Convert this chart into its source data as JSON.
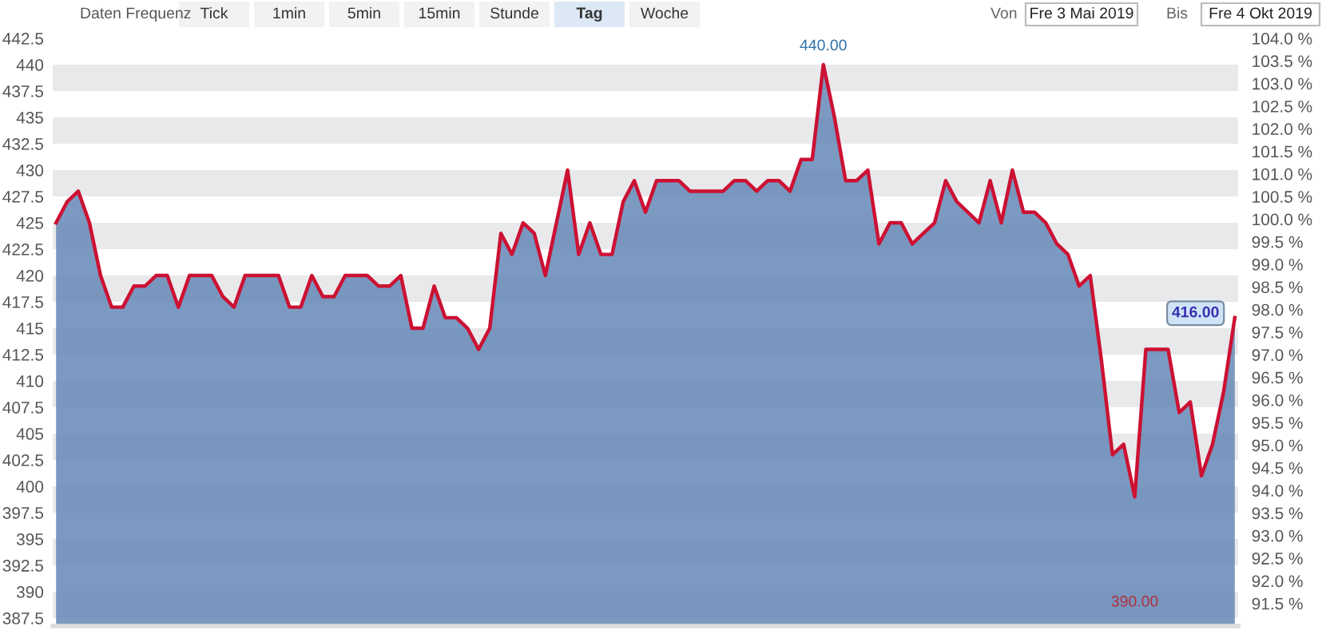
{
  "chart_data": {
    "type": "area",
    "categories": [
      null,
      null,
      null,
      null,
      null,
      null,
      null,
      null,
      null,
      null,
      null,
      null,
      null,
      null,
      null,
      null,
      null,
      null,
      null,
      null,
      null,
      null,
      null,
      null,
      null,
      null,
      null,
      null,
      null,
      null,
      null,
      null,
      null,
      null,
      null,
      null,
      null,
      null,
      null,
      null,
      null,
      null,
      null,
      null,
      null,
      null,
      null,
      null,
      null,
      null,
      null,
      null,
      null,
      null,
      null,
      null,
      null,
      null,
      null,
      null,
      null,
      null,
      null,
      null,
      null,
      null,
      null,
      null,
      null,
      null,
      null,
      null,
      null,
      null,
      null,
      null,
      null,
      null,
      null,
      null,
      null,
      null,
      null,
      null,
      null,
      null,
      null,
      null,
      null,
      null,
      null,
      null,
      null,
      null,
      null,
      null,
      null,
      null,
      null,
      null,
      null,
      null,
      null,
      null,
      null,
      null,
      null
    ],
    "series": [
      {
        "color": "#5f84b3",
        "values": [
          425,
          427,
          428,
          425,
          420,
          417,
          417,
          419,
          419,
          420,
          420,
          417,
          420,
          420,
          420,
          418,
          417,
          420,
          420,
          420,
          420,
          417,
          417,
          420,
          418,
          418,
          420,
          420,
          420,
          419,
          419,
          420,
          415,
          415,
          419,
          416,
          416,
          415,
          413,
          415,
          424,
          422,
          425,
          424,
          420,
          425,
          430,
          422,
          425,
          422,
          422,
          427,
          429,
          426,
          429,
          429,
          429,
          428,
          428,
          428,
          428,
          429,
          429,
          428,
          429,
          429,
          428,
          431,
          431,
          440,
          435,
          429,
          429,
          430,
          423,
          425,
          425,
          423,
          424,
          425,
          429,
          427,
          426,
          425,
          429,
          425,
          430,
          426,
          426,
          425,
          423,
          422,
          419,
          420,
          412,
          403,
          404,
          399,
          413,
          413,
          413,
          407,
          408,
          401,
          404,
          409,
          416
        ]
      },
      {
        "type": "line",
        "color": "#cc1133",
        "values": [
          425,
          427,
          428,
          425,
          420,
          417,
          417,
          419,
          419,
          420,
          420,
          417,
          420,
          420,
          420,
          418,
          417,
          420,
          420,
          420,
          420,
          417,
          417,
          420,
          418,
          418,
          420,
          420,
          420,
          419,
          419,
          420,
          415,
          415,
          419,
          416,
          416,
          415,
          413,
          415,
          424,
          422,
          425,
          424,
          420,
          425,
          430,
          422,
          425,
          422,
          422,
          427,
          429,
          426,
          429,
          429,
          429,
          428,
          428,
          428,
          428,
          429,
          429,
          428,
          429,
          429,
          428,
          431,
          431,
          440,
          435,
          429,
          429,
          430,
          423,
          425,
          425,
          423,
          424,
          425,
          429,
          427,
          426,
          425,
          429,
          425,
          430,
          426,
          426,
          425,
          423,
          422,
          419,
          420,
          412,
          403,
          404,
          399,
          413,
          413,
          413,
          407,
          408,
          401,
          404,
          409,
          416
        ]
      }
    ],
    "ylim": [
      386.75,
      442.5
    ],
    "yticks": [
      387.5,
      390,
      392.5,
      395,
      397.5,
      400,
      402.5,
      405,
      407.5,
      410,
      412.5,
      415,
      417.5,
      420,
      422.5,
      425,
      427.5,
      430,
      432.5,
      435,
      437.5,
      440,
      442.5
    ],
    "y2lim": [
      91.0,
      104.0
    ],
    "y2ticks": [
      {
        "value": 91.5,
        "label": "91.5 %"
      },
      {
        "value": 92.0,
        "label": "92.0 %"
      },
      {
        "value": 92.5,
        "label": "92.5 %"
      },
      {
        "value": 93.0,
        "label": "93.0 %"
      },
      {
        "value": 93.5,
        "label": "93.5 %"
      },
      {
        "value": 94.0,
        "label": "94.0 %"
      },
      {
        "value": 94.5,
        "label": "94.5 %"
      },
      {
        "value": 95.0,
        "label": "95.0 %"
      },
      {
        "value": 95.5,
        "label": "95.5 %"
      },
      {
        "value": 96.0,
        "label": "96.0 %"
      },
      {
        "value": 96.5,
        "label": "96.5 %"
      },
      {
        "value": 97.0,
        "label": "97.0 %"
      },
      {
        "value": 97.5,
        "label": "97.5 %"
      },
      {
        "value": 98.0,
        "label": "98.0 %"
      },
      {
        "value": 98.5,
        "label": "98.5 %"
      },
      {
        "value": 99.0,
        "label": "99.0 %"
      },
      {
        "value": 99.5,
        "label": "99.5 %"
      },
      {
        "value": 100.0,
        "label": "100.0 %"
      },
      {
        "value": 100.5,
        "label": "100.5 %"
      },
      {
        "value": 101.0,
        "label": "101.0 %"
      },
      {
        "value": 101.5,
        "label": "101.5 %"
      },
      {
        "value": 102.0,
        "label": "102.0 %"
      },
      {
        "value": 102.5,
        "label": "102.5 %"
      },
      {
        "value": 103.0,
        "label": "103.0 %"
      },
      {
        "value": 103.5,
        "label": "103.5 %"
      },
      {
        "value": 104.0,
        "label": "104.0 %"
      }
    ],
    "bands": [
      {
        "axis": "y",
        "from": 387.5,
        "to": 390,
        "color": "#e9e9eb"
      },
      {
        "axis": "y",
        "from": 392.5,
        "to": 395,
        "color": "#e9e9eb"
      },
      {
        "axis": "y",
        "from": 397.5,
        "to": 400,
        "color": "#e9e9eb"
      },
      {
        "axis": "y",
        "from": 402.5,
        "to": 405,
        "color": "#e9e9eb"
      },
      {
        "axis": "y",
        "from": 407.5,
        "to": 410,
        "color": "#e9e9eb"
      },
      {
        "axis": "y",
        "from": 412.5,
        "to": 415,
        "color": "#e9e9eb"
      },
      {
        "axis": "y",
        "from": 417.5,
        "to": 420,
        "color": "#e9e9eb"
      },
      {
        "axis": "y",
        "from": 422.5,
        "to": 425,
        "color": "#e9e9eb"
      },
      {
        "axis": "y",
        "from": 427.5,
        "to": 430,
        "color": "#e9e9eb"
      },
      {
        "axis": "y",
        "from": 432.5,
        "to": 435,
        "color": "#e9e9eb"
      },
      {
        "axis": "y",
        "from": 437.5,
        "to": 440,
        "color": "#e9e9eb"
      }
    ],
    "annotations": [
      {
        "text": "440.00",
        "y": 440
      },
      "390.00",
      "416.00",
      "Daten Frequenz",
      "Tick",
      "1min",
      "5min",
      "15min",
      "Stunde",
      "Tag",
      "Woche",
      "Von",
      "Fre 3 Mai 2019",
      "Bis",
      "Fre 4 Okt 2019"
    ]
  }
}
